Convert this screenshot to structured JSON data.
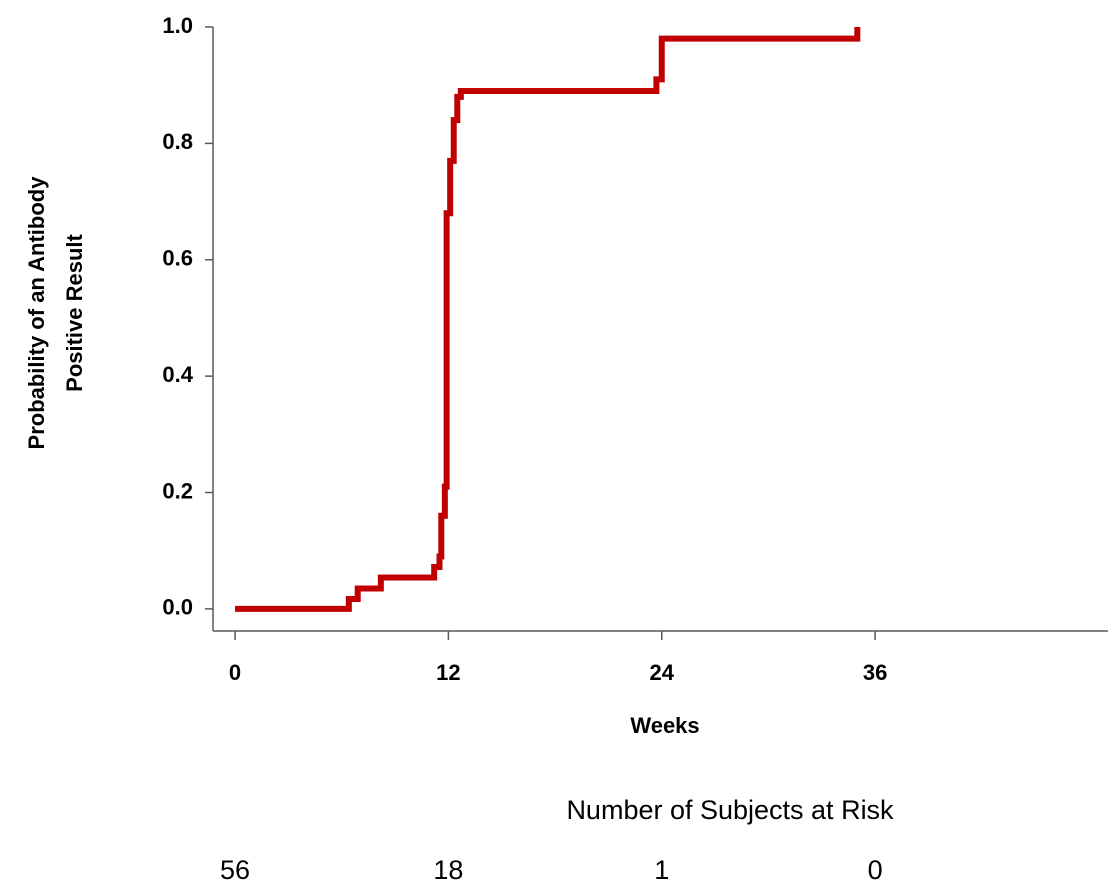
{
  "chart_data": {
    "type": "step",
    "xlabel": "Weeks",
    "ylabel": [
      "Probability of an Antibody",
      "Positive Result"
    ],
    "x": [
      0,
      6.4,
      6.9,
      8.2,
      11.2,
      11.5,
      11.6,
      11.8,
      11.9,
      12.1,
      12.3,
      12.5,
      12.7,
      23.7,
      24.0,
      35.0
    ],
    "series": [
      {
        "color": "#c00000",
        "values": [
          0,
          0.017,
          0.035,
          0.054,
          0.072,
          0.09,
          0.16,
          0.21,
          0.68,
          0.77,
          0.84,
          0.88,
          0.89,
          0.91,
          0.98,
          1.0
        ]
      }
    ],
    "xlim": [
      -1.24,
      49.1
    ],
    "xticks": [
      0,
      12,
      24,
      36
    ],
    "ylim": [
      -0.038,
      1.0
    ],
    "yticks": [
      {
        "value": 0,
        "label": "0.0"
      },
      {
        "value": 0.2,
        "label": "0.2"
      },
      {
        "value": 0.4,
        "label": "0.4"
      },
      {
        "value": 0.6,
        "label": "0.6"
      },
      {
        "value": 0.8,
        "label": "0.8"
      },
      {
        "value": 1,
        "label": "1.0"
      }
    ],
    "risk_table": {
      "title": "Number of Subjects at Risk",
      "counts": [
        56,
        18,
        1,
        0
      ]
    }
  }
}
